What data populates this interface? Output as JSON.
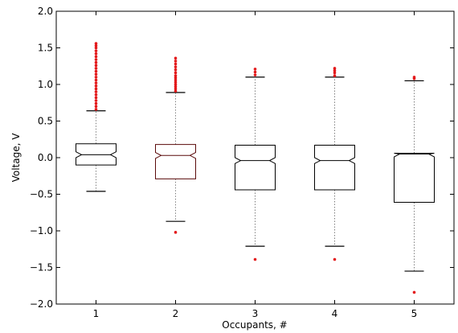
{
  "chart_data": {
    "type": "box",
    "xlabel": "Occupants, #",
    "ylabel": "Voltage, V",
    "ylim": [
      -2.0,
      2.0
    ],
    "xlim": [
      0.5,
      5.5
    ],
    "grid": false,
    "notched": true,
    "categories": [
      "1",
      "2",
      "3",
      "4",
      "5"
    ],
    "x_ticks": [
      "1",
      "2",
      "3",
      "4",
      "5"
    ],
    "y_ticks": [
      "−2.0",
      "−1.5",
      "−1.0",
      "−0.5",
      "0.0",
      "0.5",
      "1.0",
      "1.5",
      "2.0"
    ],
    "y_tick_values": [
      -2.0,
      -1.5,
      -1.0,
      -0.5,
      0.0,
      0.5,
      1.0,
      1.5,
      2.0
    ],
    "colors": {
      "box": "#000000",
      "box_highlight": "#5a0a0a",
      "outlier": "#e31a1c",
      "whisker": "#808080"
    },
    "boxes": [
      {
        "category": "1",
        "q1": -0.1,
        "median": 0.04,
        "q3": 0.19,
        "whislo": -0.46,
        "whishi": 0.64,
        "notch_lo": 0.0,
        "notch_hi": 0.08,
        "outliers": [
          0.66,
          0.7,
          0.74,
          0.78,
          0.82,
          0.86,
          0.9,
          0.94,
          0.98,
          1.02,
          1.06,
          1.1,
          1.14,
          1.18,
          1.22,
          1.26,
          1.3,
          1.34,
          1.38,
          1.42,
          1.46,
          1.5,
          1.53,
          1.56
        ]
      },
      {
        "category": "2",
        "q1": -0.29,
        "median": 0.03,
        "q3": 0.18,
        "whislo": -0.87,
        "whishi": 0.89,
        "notch_lo": -0.01,
        "notch_hi": 0.07,
        "outliers": [
          0.91,
          0.94,
          0.97,
          1.0,
          1.03,
          1.06,
          1.09,
          1.12,
          1.16,
          1.2,
          1.24,
          1.28,
          1.32,
          1.36,
          -1.02
        ]
      },
      {
        "category": "3",
        "q1": -0.44,
        "median": -0.04,
        "q3": 0.17,
        "whislo": -1.21,
        "whishi": 1.1,
        "notch_lo": -0.08,
        "notch_hi": 0.0,
        "outliers": [
          1.13,
          1.17,
          1.21,
          -1.39
        ]
      },
      {
        "category": "4",
        "q1": -0.44,
        "median": -0.04,
        "q3": 0.17,
        "whislo": -1.21,
        "whishi": 1.1,
        "notch_lo": -0.08,
        "notch_hi": 0.0,
        "outliers": [
          1.12,
          1.16,
          1.19,
          1.22,
          -1.39
        ]
      },
      {
        "category": "5",
        "q1": -0.61,
        "median": 0.05,
        "q3": 0.06,
        "whislo": -1.55,
        "whishi": 1.05,
        "notch_lo": 0.01,
        "notch_hi": 0.09,
        "outliers": [
          1.08,
          1.1,
          -1.84
        ]
      }
    ]
  }
}
